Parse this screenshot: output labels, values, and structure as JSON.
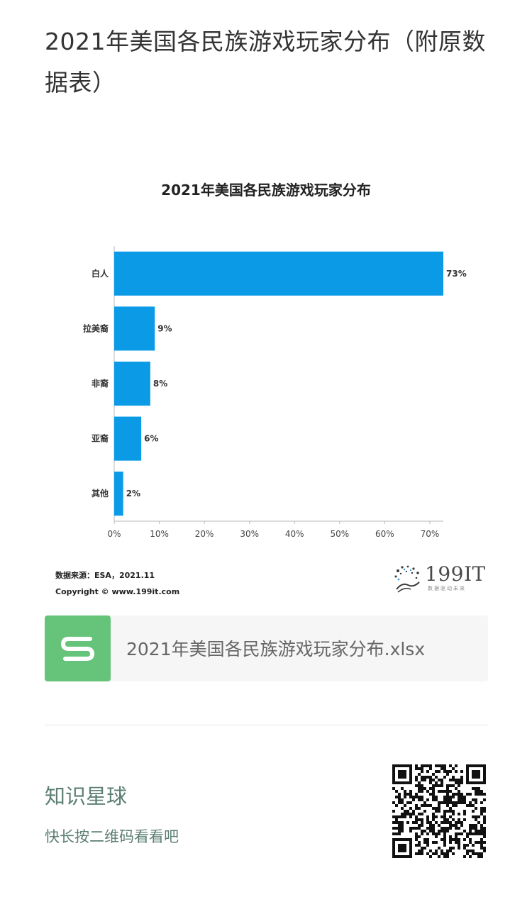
{
  "article": {
    "title": "2021年美国各民族游戏玩家分布（附原数据表）"
  },
  "chart_data": {
    "type": "bar",
    "orientation": "horizontal",
    "title": "2021年美国各民族游戏玩家分布",
    "categories": [
      "白人",
      "拉美裔",
      "非裔",
      "亚裔",
      "其他"
    ],
    "values": [
      73,
      9,
      8,
      6,
      2
    ],
    "value_labels": [
      "73%",
      "9%",
      "8%",
      "6%",
      "2%"
    ],
    "xlim": [
      0,
      73
    ],
    "x_ticks": [
      "0%",
      "10%",
      "20%",
      "30%",
      "40%",
      "50%",
      "60%",
      "70%"
    ],
    "x_tick_values": [
      0,
      10,
      20,
      30,
      40,
      50,
      60,
      70
    ],
    "bar_color": "#0a9ae6",
    "xlabel": "",
    "ylabel": "",
    "grid": false,
    "legend": "none"
  },
  "source": {
    "line1": "数据来源：ESA，2021.11",
    "line2": "Copyright © www.199it.com"
  },
  "brand": {
    "name": "199IT",
    "tagline": "数据驱动未来"
  },
  "attachment": {
    "icon": "spreadsheet-s-icon",
    "icon_color": "#65c37a",
    "filename": "2021年美国各民族游戏玩家分布.xlsx"
  },
  "planet": {
    "title": "知识星球",
    "hint": "快长按二维码看看吧",
    "accent": "#5c7f72"
  }
}
